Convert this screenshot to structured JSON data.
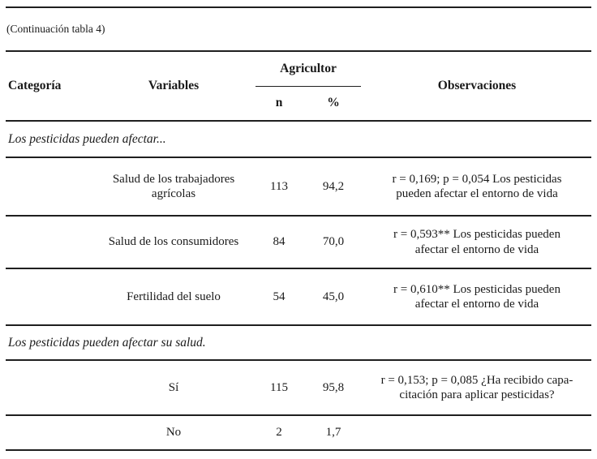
{
  "document": {
    "continuation_note": "(Continuación tabla 4)"
  },
  "table": {
    "headers": {
      "category": "Categoría",
      "variables": "Variables",
      "group": "Agricultor",
      "n": "n",
      "percent": "%",
      "observations": "Observaciones"
    },
    "sections": [
      {
        "title": "Los pesticidas pueden afectar...",
        "rows": [
          {
            "category": "",
            "variable": "Salud de los trabajadores agrícolas",
            "n": "113",
            "percent": "94,2",
            "observation": "r = 0,169; p = 0,054 Los pesticidas pueden afectar el entorno de vida"
          },
          {
            "category": "",
            "variable": "Salud de los consumidores",
            "n": "84",
            "percent": "70,0",
            "observation": "r = 0,593** Los pesticidas pueden afectar el entorno de vida"
          },
          {
            "category": "",
            "variable": "Fertilidad del suelo",
            "n": "54",
            "percent": "45,0",
            "observation": "r = 0,610** Los pesticidas pueden afectar el entorno de vida"
          }
        ]
      },
      {
        "title": "Los pesticidas pueden afectar su salud.",
        "rows": [
          {
            "category": "",
            "variable": "Sí",
            "n": "115",
            "percent": "95,8",
            "observation": "r = 0,153; p = 0,085 ¿Ha recibido capa-citación para aplicar pesticidas?"
          },
          {
            "category": "",
            "variable": "No",
            "n": "2",
            "percent": "1,7",
            "observation": ""
          }
        ]
      }
    ]
  },
  "colors": {
    "text": "#1a1a1a",
    "rule": "#1f1f1f",
    "background": "#ffffff"
  }
}
